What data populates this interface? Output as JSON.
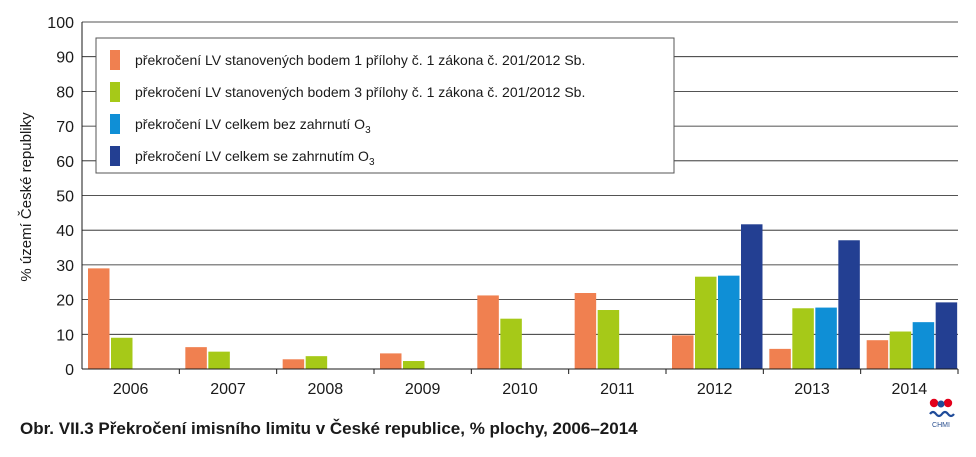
{
  "chart_data": {
    "type": "bar",
    "categories": [
      "2006",
      "2007",
      "2008",
      "2009",
      "2010",
      "2011",
      "2012",
      "2013",
      "2014"
    ],
    "series": [
      {
        "name": "překročení LV stanovených bodem 1 přílohy č. 1 zákona č. 201/2012 Sb.",
        "name_sub": "",
        "color": "#f08050",
        "values": [
          29,
          6.3,
          2.8,
          4.5,
          21.2,
          21.9,
          9.7,
          5.8,
          8.3
        ]
      },
      {
        "name": "překročení LV stanovených bodem 3 přílohy č. 1 zákona č. 201/2012 Sb.",
        "name_sub": "",
        "color": "#a6c918",
        "values": [
          9,
          5,
          3.7,
          2.3,
          14.5,
          17,
          26.6,
          17.5,
          10.8
        ]
      },
      {
        "name": "překročení LV celkem bez zahrnutí O",
        "name_sub": "3",
        "color": "#0f8fd6",
        "values": [
          0,
          0,
          0,
          0,
          0,
          0,
          26.9,
          17.7,
          13.5
        ]
      },
      {
        "name": "překročení LV celkem se zahrnutím O",
        "name_sub": "3",
        "color": "#233f92",
        "values": [
          0,
          0,
          0,
          0,
          0,
          0,
          41.7,
          37.1,
          19.2
        ]
      }
    ],
    "yticks": [
      0,
      10,
      20,
      30,
      40,
      50,
      60,
      70,
      80,
      90,
      100
    ],
    "ylim": [
      0,
      100
    ],
    "ylabel": "% území České republiky",
    "xlabel": "",
    "grid": true,
    "legend": "top-left"
  },
  "caption": "Obr. VII.3  Překročení imisního limitu v České republice, % plochy, 2006–2014",
  "logo": {
    "text": "CHMI",
    "colors": [
      "#e3001b",
      "#1f4b99"
    ]
  }
}
